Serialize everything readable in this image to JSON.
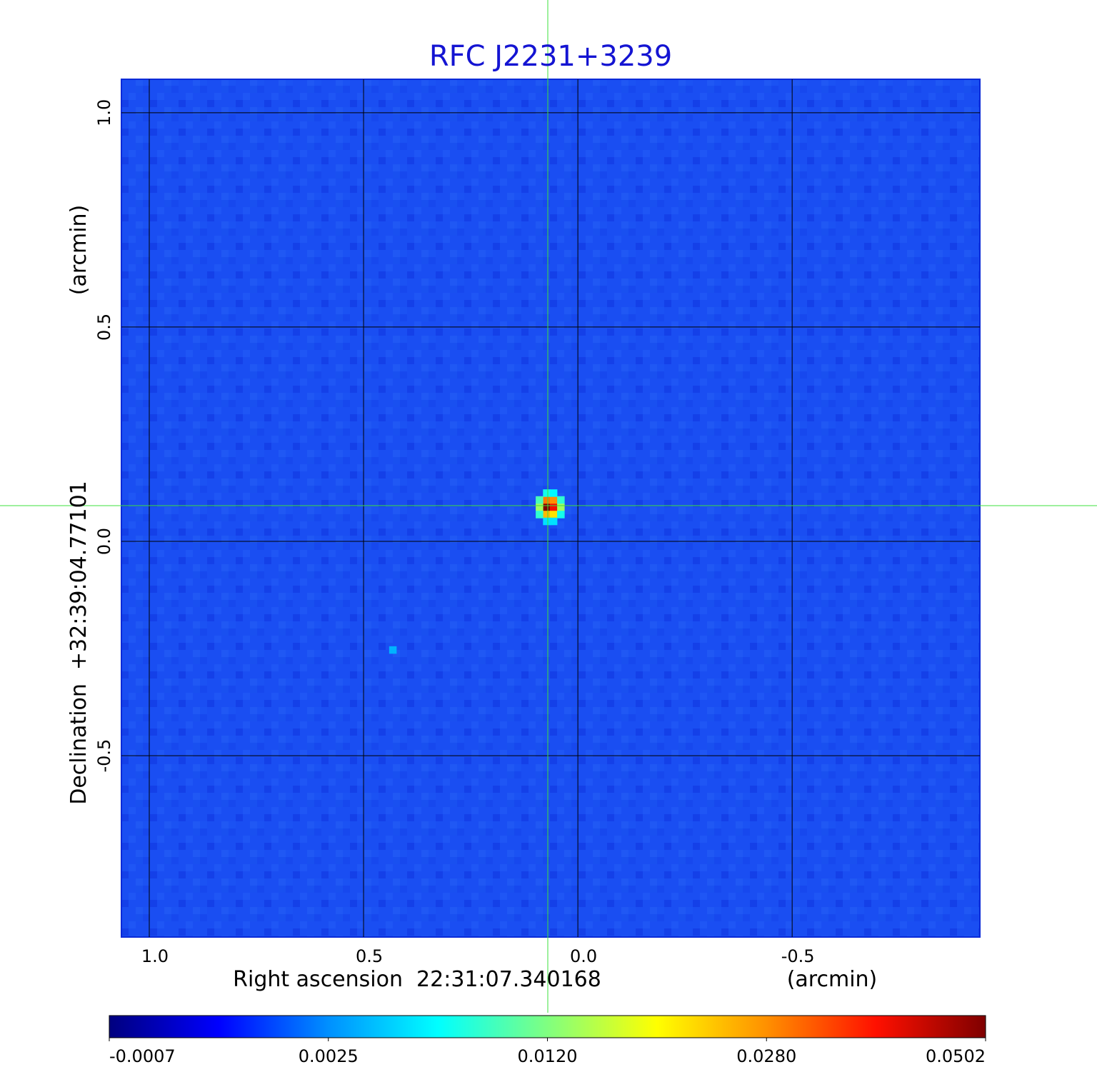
{
  "chart_data": {
    "type": "heatmap",
    "title": "RFC J2231+3239",
    "x_label": "Right ascension  22:31:07.340168",
    "x_unit": "(arcmin)",
    "y_label": "Declination  +32:39:04.77101",
    "y_unit": "(arcmin)",
    "xlim": [
      1.065,
      -0.938
    ],
    "ylim": [
      -0.923,
      1.078
    ],
    "xticks": [
      {
        "value": 1,
        "label": "1.0"
      },
      0.5,
      {
        "value": 0,
        "label": "0.0"
      },
      -0.5
    ],
    "yticks": [
      {
        "value": 1,
        "label": "1.0"
      },
      0.5,
      {
        "value": 0,
        "label": "0.0"
      },
      -0.5
    ],
    "grid": true,
    "x": [
      0.073,
      0.057,
      0.073,
      0.057,
      0.073,
      0.057,
      0.09,
      0.04,
      0.073,
      0.057,
      0.073,
      0.057,
      0.09,
      0.04,
      0.09,
      0.04,
      0.432
    ],
    "y": [
      0.08,
      0.08,
      0.097,
      0.097,
      0.063,
      0.063,
      0.08,
      0.08,
      0.113,
      0.113,
      0.047,
      0.047,
      0.097,
      0.097,
      0.063,
      0.063,
      -0.253
    ],
    "values": [
      0.0502,
      0.04,
      0.03,
      0.028,
      0.025,
      0.022,
      0.014,
      0.014,
      0.008,
      0.007,
      0.006,
      0.006,
      0.01,
      0.009,
      0.009,
      0.008,
      0.004
    ],
    "clim": [
      -0.0007,
      0.0502
    ],
    "cticks": [
      -0.0007,
      0.0025,
      {
        "value": 0.012,
        "label": "0.0120"
      },
      {
        "value": 0.028,
        "label": "0.0280"
      },
      0.0502
    ],
    "colormap": [
      "#00007f",
      "#0000ff",
      "#0090ff",
      "#00ffff",
      "#80ff80",
      "#ffff00",
      "#ff9000",
      "#ff1000",
      "#7f0000"
    ]
  }
}
